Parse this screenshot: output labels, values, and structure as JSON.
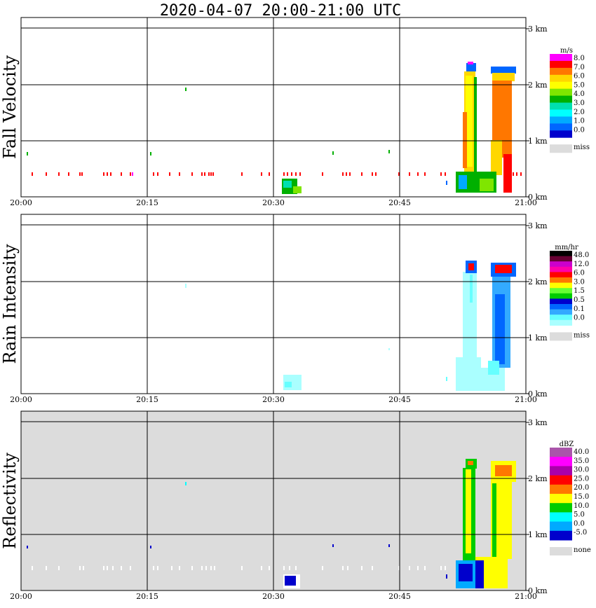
{
  "title": "2020-04-07   20:00-21:00 UTC",
  "time_ticks": [
    "20:00",
    "20:15",
    "20:30",
    "20:45",
    "21:00"
  ],
  "height_ticks": [
    "0 km",
    "1 km",
    "2 km",
    "3 km"
  ],
  "chart_data": [
    {
      "type": "heatmap",
      "ylabel": "Fall Velocity",
      "unit": "m/s",
      "colorbar_labels": [
        "8.0",
        "7.0",
        "6.0",
        "5.0",
        "4.0",
        "3.0",
        "2.0",
        "1.0",
        "0.0"
      ],
      "colors": [
        "#ff00ff",
        "#ff0000",
        "#ff7700",
        "#ffd700",
        "#ffff00",
        "#7fe600",
        "#00b000",
        "#00e0b0",
        "#00ffff",
        "#00aaff",
        "#0066ff",
        "#0000cc"
      ],
      "missing_label": "miss",
      "background": "#ffffff",
      "xlim": [
        "20:00",
        "21:00"
      ],
      "ylim_km": [
        0,
        3.1
      ]
    },
    {
      "type": "heatmap",
      "ylabel": "Rain Intensity",
      "unit": "mm/hr",
      "colorbar_labels": [
        "48.0",
        "12.0",
        "6.0",
        "3.0",
        "1.5",
        "0.5",
        "0.1",
        "0.0"
      ],
      "colors": [
        "#000000",
        "#660033",
        "#cc00cc",
        "#ff00aa",
        "#ff0000",
        "#ff7700",
        "#ffff00",
        "#66ff33",
        "#00cc00",
        "#0000cc",
        "#0066ff",
        "#33aaff",
        "#66ffff",
        "#aaffff"
      ],
      "missing_label": "miss",
      "background": "#ffffff",
      "xlim": [
        "20:00",
        "21:00"
      ],
      "ylim_km": [
        0,
        3.1
      ]
    },
    {
      "type": "heatmap",
      "ylabel": "Reflectivity",
      "unit": "dBZ",
      "colorbar_labels": [
        "40.0",
        "35.0",
        "30.0",
        "25.0",
        "20.0",
        "15.0",
        "10.0",
        "5.0",
        "0.0",
        "-5.0"
      ],
      "colors": [
        "#aa55aa",
        "#ff00ff",
        "#aa00aa",
        "#ff0000",
        "#ff7700",
        "#ffff00",
        "#00cc00",
        "#00ffff",
        "#00aaff",
        "#0000cc"
      ],
      "missing_label": "none",
      "background": "#dcdcdc",
      "xlim": [
        "20:00",
        "21:00"
      ],
      "ylim_km": [
        0,
        3.1
      ]
    }
  ]
}
